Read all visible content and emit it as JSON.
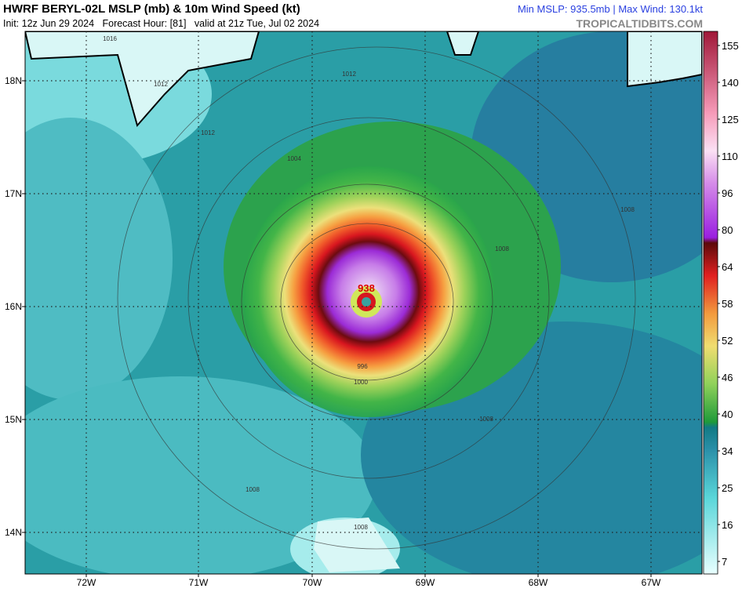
{
  "header": {
    "title": "HWRF BERYL-02L MSLP (mb) & 10m Wind Speed (kt)",
    "subtitle": "Init: 12z Jun 29 2024   Forecast Hour: [81]   valid at 21z Tue, Jul 02 2024",
    "stats": "Min MSLP: 935.5mb | Max Wind: 130.1kt",
    "source": "TROPICALTIDBITS.COM"
  },
  "map": {
    "lat_labels": [
      "18N",
      "17N",
      "16N",
      "15N",
      "14N"
    ],
    "lon_labels": [
      "72W",
      "71W",
      "70W",
      "69W",
      "68W",
      "67W"
    ],
    "contour_labels": [
      "1016",
      "1012",
      "1012",
      "1012",
      "1008",
      "1008",
      "1004",
      "1000",
      "996",
      "1008",
      "1008",
      "1008",
      "938"
    ]
  },
  "colorbar": {
    "ticks": [
      7,
      16,
      25,
      34,
      40,
      46,
      52,
      58,
      64,
      80,
      96,
      110,
      125,
      140,
      155
    ]
  }
}
